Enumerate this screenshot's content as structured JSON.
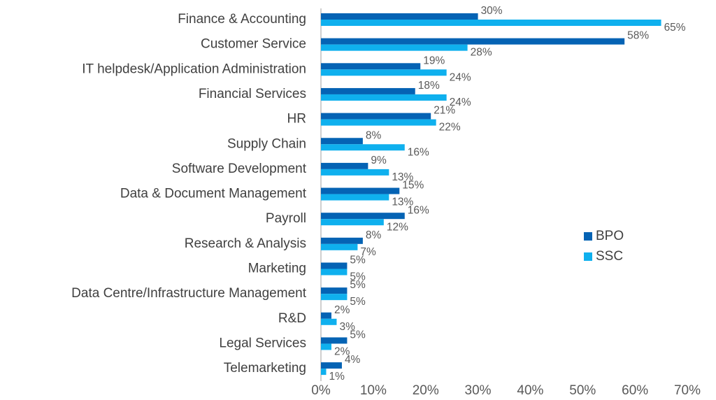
{
  "chart_data": {
    "type": "hbar",
    "categories": [
      "Finance & Accounting",
      "Customer Service",
      "IT helpdesk/Application Administration",
      "Financial Services",
      "HR",
      "Supply Chain",
      "Software Development",
      "Data & Document Management",
      "Payroll",
      "Research & Analysis",
      "Marketing",
      "Data Centre/Infrastructure Management",
      "R&D",
      "Legal Services",
      "Telemarketing"
    ],
    "series": [
      {
        "name": "BPO",
        "color": "#0563b4",
        "values": [
          30,
          58,
          19,
          18,
          21,
          8,
          9,
          15,
          16,
          8,
          5,
          5,
          2,
          5,
          4
        ],
        "value_labels": [
          "30%",
          "58%",
          "19%",
          "18%",
          "21%",
          "8%",
          "9%",
          "15%",
          "16%",
          "8%",
          "5%",
          "5%",
          "2%",
          "5%",
          "4%"
        ]
      },
      {
        "name": "SSC",
        "color": "#0fb0ee",
        "values": [
          65,
          28,
          24,
          24,
          22,
          16,
          13,
          13,
          12,
          7,
          5,
          5,
          3,
          2,
          1
        ],
        "value_labels": [
          "65%",
          "28%",
          "24%",
          "24%",
          "22%",
          "16%",
          "13%",
          "13%",
          "12%",
          "7%",
          "5%",
          "5%",
          "3%",
          "2%",
          "1%"
        ]
      }
    ],
    "xlim": [
      0,
      70
    ],
    "xticks": [
      {
        "value": 0,
        "label": "0%"
      },
      {
        "value": 10,
        "label": "10%"
      },
      {
        "value": 20,
        "label": "20%"
      },
      {
        "value": 30,
        "label": "30%"
      },
      {
        "value": 40,
        "label": "40%"
      },
      {
        "value": 50,
        "label": "50%"
      },
      {
        "value": 60,
        "label": "60%"
      },
      {
        "value": 70,
        "label": "70%"
      }
    ]
  }
}
